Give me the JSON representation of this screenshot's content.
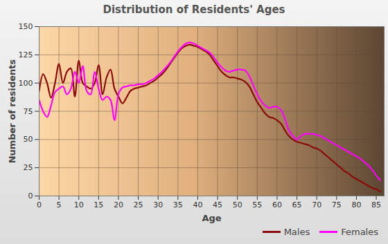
{
  "chart_data": {
    "type": "line",
    "title": "Distribution of Residents' Ages",
    "x_label": "Age",
    "y_label": "Number of residents",
    "x": [
      0,
      1,
      2,
      3,
      4,
      5,
      6,
      7,
      8,
      9,
      10,
      11,
      12,
      13,
      14,
      15,
      16,
      17,
      18,
      19,
      20,
      21,
      22,
      23,
      24,
      25,
      26,
      27,
      28,
      29,
      30,
      31,
      32,
      33,
      34,
      35,
      36,
      37,
      38,
      39,
      40,
      41,
      42,
      43,
      44,
      45,
      46,
      47,
      48,
      49,
      50,
      51,
      52,
      53,
      54,
      55,
      56,
      57,
      58,
      59,
      60,
      61,
      62,
      63,
      64,
      65,
      66,
      67,
      68,
      69,
      70,
      71,
      72,
      73,
      74,
      75,
      76,
      77,
      78,
      79,
      80,
      81,
      82,
      83,
      84,
      85,
      86
    ],
    "series": [
      {
        "name": "Males",
        "color": "#8b0a0a",
        "values": [
          93,
          108,
          100,
          87,
          100,
          117,
          100,
          110,
          113,
          88,
          120,
          100,
          97,
          95,
          100,
          116,
          90,
          105,
          112,
          95,
          88,
          82,
          87,
          93,
          95,
          96,
          97,
          98,
          100,
          102,
          105,
          108,
          112,
          117,
          122,
          127,
          131,
          133,
          134,
          133,
          132,
          130,
          128,
          125,
          120,
          115,
          110,
          107,
          105,
          105,
          104,
          103,
          101,
          97,
          90,
          83,
          78,
          73,
          70,
          69,
          67,
          64,
          58,
          53,
          50,
          48,
          47,
          46,
          45,
          43,
          42,
          40,
          37,
          34,
          31,
          28,
          25,
          22,
          20,
          17,
          15,
          13,
          11,
          9,
          7,
          6,
          4
        ]
      },
      {
        "name": "Females",
        "color": "#ff00ff",
        "values": [
          85,
          75,
          70,
          80,
          92,
          95,
          97,
          90,
          95,
          110,
          100,
          115,
          93,
          90,
          110,
          95,
          85,
          88,
          85,
          67,
          90,
          96,
          97,
          98,
          98,
          99,
          99,
          100,
          102,
          104,
          107,
          110,
          114,
          118,
          123,
          128,
          132,
          135,
          136,
          135,
          133,
          131,
          129,
          127,
          123,
          118,
          114,
          111,
          110,
          111,
          112,
          112,
          111,
          106,
          98,
          90,
          84,
          80,
          78,
          79,
          79,
          76,
          68,
          58,
          53,
          50,
          53,
          55,
          55,
          55,
          54,
          53,
          51,
          49,
          47,
          45,
          43,
          41,
          39,
          37,
          35,
          33,
          30,
          27,
          23,
          18,
          14
        ]
      }
    ],
    "xlim": [
      0,
      87
    ],
    "ylim": [
      0,
      150
    ],
    "xticks": [
      0,
      5,
      10,
      15,
      20,
      25,
      30,
      35,
      40,
      45,
      50,
      55,
      60,
      65,
      70,
      75,
      80,
      85
    ],
    "yticks": [
      0,
      25,
      50,
      75,
      100,
      125,
      150
    ],
    "grid": true,
    "legend": "bottom-right"
  }
}
